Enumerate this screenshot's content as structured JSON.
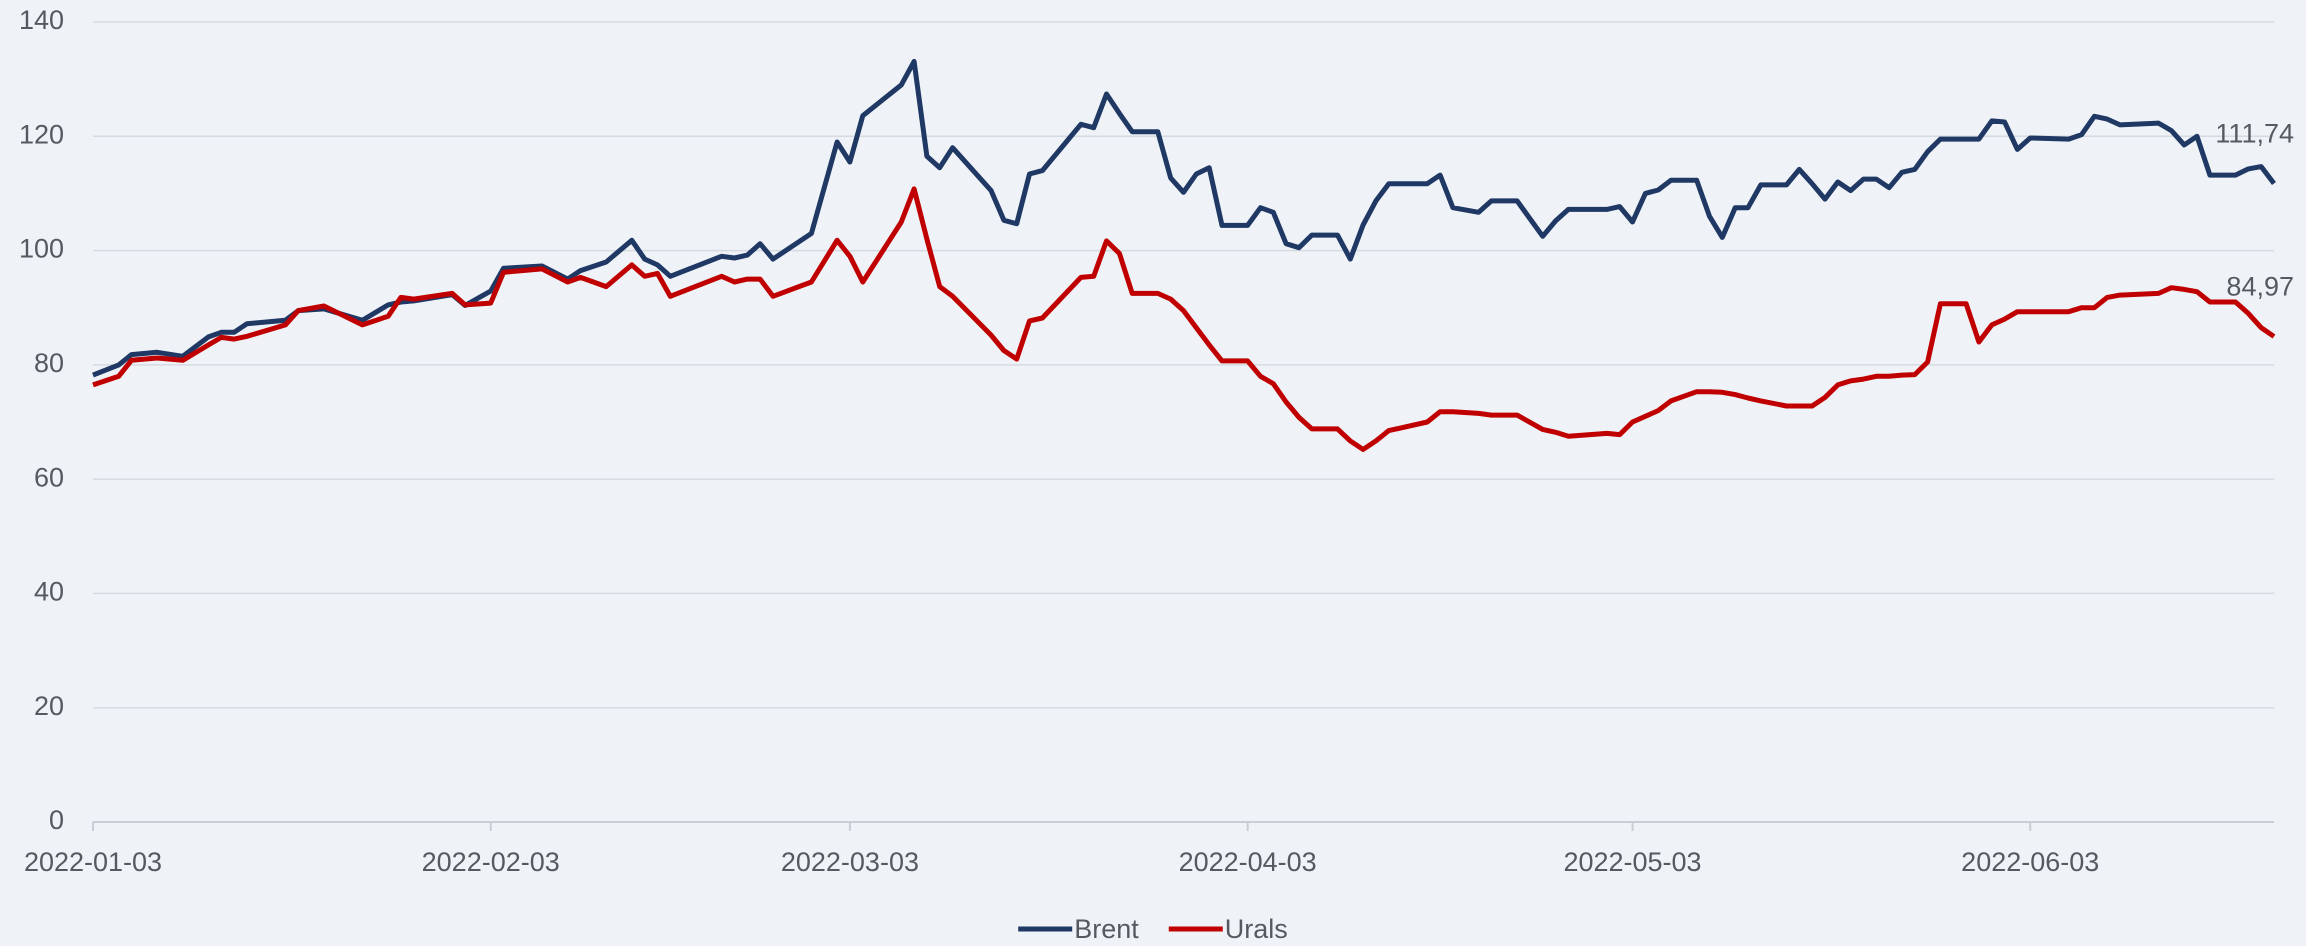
{
  "chart_data": {
    "type": "line",
    "x": [
      "2022-01-03",
      "2022-01-05",
      "2022-01-06",
      "2022-01-08",
      "2022-01-10",
      "2022-01-12",
      "2022-01-13",
      "2022-01-14",
      "2022-01-15",
      "2022-01-18",
      "2022-01-19",
      "2022-01-21",
      "2022-01-24",
      "2022-01-26",
      "2022-01-27",
      "2022-01-28",
      "2022-01-31",
      "2022-02-01",
      "2022-02-03",
      "2022-02-04",
      "2022-02-07",
      "2022-02-09",
      "2022-02-10",
      "2022-02-12",
      "2022-02-14",
      "2022-02-15",
      "2022-02-16",
      "2022-02-17",
      "2022-02-21",
      "2022-02-22",
      "2022-02-23",
      "2022-02-24",
      "2022-02-25",
      "2022-02-28",
      "2022-03-02",
      "2022-03-03",
      "2022-03-04",
      "2022-03-07",
      "2022-03-08",
      "2022-03-09",
      "2022-03-10",
      "2022-03-11",
      "2022-03-14",
      "2022-03-15",
      "2022-03-16",
      "2022-03-17",
      "2022-03-18",
      "2022-03-21",
      "2022-03-22",
      "2022-03-23",
      "2022-03-24",
      "2022-03-25",
      "2022-03-27",
      "2022-03-28",
      "2022-03-29",
      "2022-03-30",
      "2022-03-31",
      "2022-04-01",
      "2022-04-03",
      "2022-04-04",
      "2022-04-05",
      "2022-04-06",
      "2022-04-07",
      "2022-04-08",
      "2022-04-10",
      "2022-04-11",
      "2022-04-12",
      "2022-04-13",
      "2022-04-14",
      "2022-04-17",
      "2022-04-18",
      "2022-04-19",
      "2022-04-21",
      "2022-04-22",
      "2022-04-24",
      "2022-04-26",
      "2022-04-27",
      "2022-04-28",
      "2022-05-01",
      "2022-05-02",
      "2022-05-03",
      "2022-05-04",
      "2022-05-05",
      "2022-05-06",
      "2022-05-08",
      "2022-05-09",
      "2022-05-10",
      "2022-05-11",
      "2022-05-12",
      "2022-05-13",
      "2022-05-15",
      "2022-05-16",
      "2022-05-17",
      "2022-05-18",
      "2022-05-19",
      "2022-05-20",
      "2022-05-21",
      "2022-05-22",
      "2022-05-23",
      "2022-05-24",
      "2022-05-25",
      "2022-05-26",
      "2022-05-27",
      "2022-05-29",
      "2022-05-30",
      "2022-05-31",
      "2022-06-01",
      "2022-06-02",
      "2022-06-03",
      "2022-06-06",
      "2022-06-07",
      "2022-06-08",
      "2022-06-09",
      "2022-06-10",
      "2022-06-13",
      "2022-06-14",
      "2022-06-15",
      "2022-06-16",
      "2022-06-17",
      "2022-06-19",
      "2022-06-20",
      "2022-06-21",
      "2022-06-22"
    ],
    "series": [
      {
        "name": "Brent",
        "color": "#1f3864",
        "end_label": "111,74",
        "values": [
          78.2,
          80,
          81.8,
          82.2,
          81.5,
          84.9,
          85.7,
          85.7,
          87.2,
          87.8,
          89.5,
          89.8,
          87.8,
          90.5,
          91,
          91.2,
          92.3,
          90.4,
          92.9,
          96.9,
          97.3,
          95,
          96.5,
          98,
          101.8,
          98.5,
          97.5,
          95.5,
          99,
          98.7,
          99.2,
          101.2,
          98.5,
          103,
          119,
          115.5,
          123.6,
          129,
          133.1,
          116.5,
          114.5,
          118,
          110.5,
          105.3,
          104.7,
          113.4,
          114,
          122.1,
          121.5,
          127.4,
          124,
          120.8,
          120.8,
          112.7,
          110.2,
          113.4,
          114.5,
          104.4,
          104.4,
          107.5,
          106.7,
          101.2,
          100.5,
          102.7,
          102.7,
          98.5,
          104.5,
          108.7,
          111.7,
          111.7,
          113.2,
          107.5,
          106.7,
          108.7,
          108.7,
          102.5,
          105.2,
          107.2,
          107.2,
          107.7,
          105,
          110,
          110.6,
          112.3,
          112.3,
          106,
          102.3,
          107.5,
          107.5,
          111.5,
          111.5,
          114.2,
          111.7,
          109,
          112,
          110.5,
          112.5,
          112.5,
          111,
          113.7,
          114.2,
          117.3,
          119.5,
          119.5,
          119.5,
          122.7,
          122.5,
          117.7,
          119.7,
          119.5,
          120.3,
          123.5,
          123,
          122,
          122.3,
          121,
          118.5,
          120,
          113.2,
          113.2,
          114.3,
          114.7,
          111.74
        ]
      },
      {
        "name": "Urals",
        "color": "#c00000",
        "end_label": "84,97",
        "values": [
          76.5,
          78,
          80.8,
          81.2,
          80.8,
          83.5,
          84.8,
          84.5,
          85,
          87,
          89.5,
          90.3,
          87,
          88.5,
          91.8,
          91.5,
          92.5,
          90.5,
          90.8,
          96.2,
          96.8,
          94.5,
          95.3,
          93.7,
          97.5,
          95.5,
          96,
          92,
          95.5,
          94.5,
          95,
          95,
          92,
          94.5,
          101.8,
          99,
          94.5,
          105,
          110.8,
          102,
          93.7,
          92,
          85.2,
          82.5,
          81,
          87.7,
          88.2,
          95.3,
          95.5,
          101.7,
          99.5,
          92.5,
          92.5,
          91.5,
          89.5,
          86.5,
          83.5,
          80.7,
          80.7,
          78,
          76.7,
          73.5,
          70.8,
          68.8,
          68.8,
          66.7,
          65.2,
          66.7,
          68.5,
          70,
          71.8,
          71.8,
          71.5,
          71.2,
          71.2,
          68.7,
          68.2,
          67.5,
          68,
          67.8,
          70,
          71,
          72,
          73.7,
          75.3,
          75.3,
          75.2,
          74.8,
          74.2,
          73.7,
          72.8,
          72.8,
          72.8,
          74.3,
          76.5,
          77.2,
          77.5,
          78,
          78,
          78.2,
          78.3,
          80.5,
          90.7,
          90.7,
          84,
          87,
          88,
          89.3,
          89.3,
          89.3,
          90,
          90,
          91.8,
          92.2,
          92.5,
          93.5,
          93.2,
          92.8,
          91,
          91,
          89,
          86.5,
          84.97
        ]
      }
    ],
    "xlim": [
      "2022-01-03",
      "2022-06-22"
    ],
    "xticks": [
      "2022-01-03",
      "2022-02-03",
      "2022-03-03",
      "2022-04-03",
      "2022-05-03",
      "2022-06-03"
    ],
    "ylim": [
      0,
      140
    ],
    "yticks": [
      0,
      20,
      40,
      60,
      80,
      100,
      120,
      140
    ],
    "grid": true,
    "legend": "bottom"
  }
}
